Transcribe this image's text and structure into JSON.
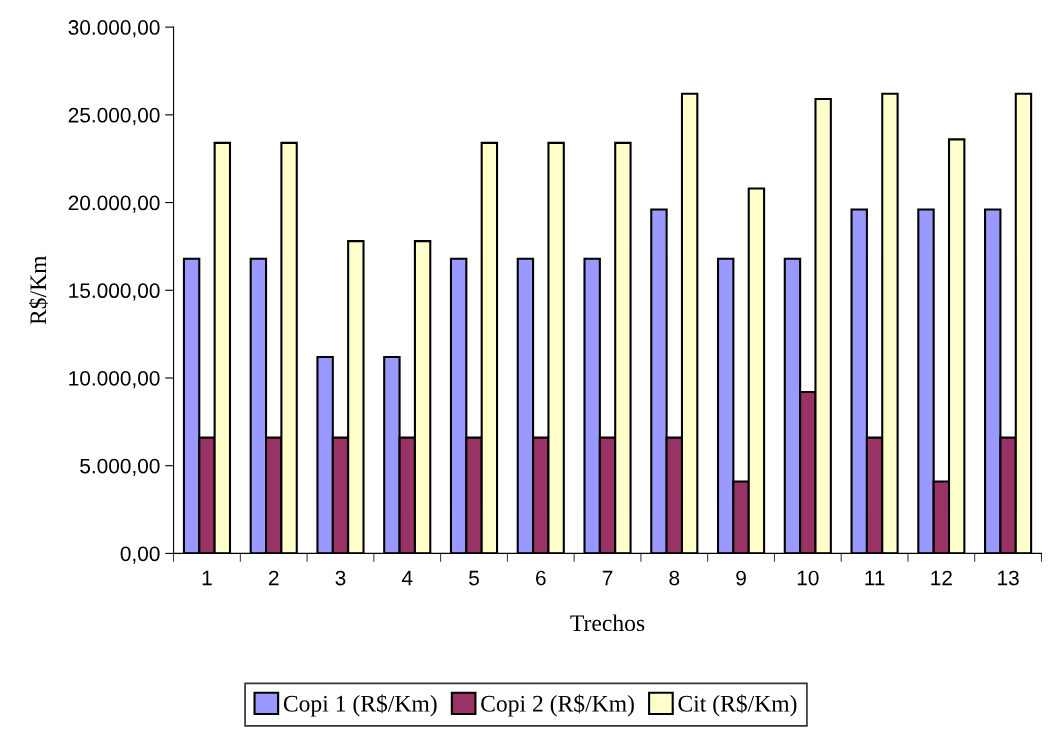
{
  "chart_data": {
    "type": "bar",
    "xlabel": "Trechos",
    "ylabel": "R$/Km",
    "categories": [
      "1",
      "2",
      "3",
      "4",
      "5",
      "6",
      "7",
      "8",
      "9",
      "10",
      "11",
      "12",
      "13"
    ],
    "series": [
      {
        "name": "Copi 1 (R$/Km)",
        "color": "#9999ff",
        "values": [
          16800,
          16800,
          11200,
          11200,
          16800,
          16800,
          16800,
          19600,
          16800,
          16800,
          19600,
          19600,
          19600
        ]
      },
      {
        "name": "Copi 2 (R$/Km)",
        "color": "#993366",
        "values": [
          6600,
          6600,
          6600,
          6600,
          6600,
          6600,
          6600,
          6600,
          4100,
          9200,
          6600,
          4100,
          6600
        ]
      },
      {
        "name": "Cit (R$/Km)",
        "color": "#ffffcc",
        "values": [
          23400,
          23400,
          17800,
          17800,
          23400,
          23400,
          23400,
          26200,
          20800,
          25900,
          26200,
          23600,
          26200
        ]
      }
    ],
    "ylim": [
      0,
      30000
    ],
    "yticks": [
      {
        "value": 0,
        "label": "0,00"
      },
      {
        "value": 5000,
        "label": "5.000,00"
      },
      {
        "value": 10000,
        "label": "10.000,00"
      },
      {
        "value": 15000,
        "label": "15.000,00"
      },
      {
        "value": 20000,
        "label": "20.000,00"
      },
      {
        "value": 25000,
        "label": "25.000,00"
      },
      {
        "value": 30000,
        "label": "30.000,00"
      }
    ],
    "grid": false,
    "legend": "bottom"
  }
}
